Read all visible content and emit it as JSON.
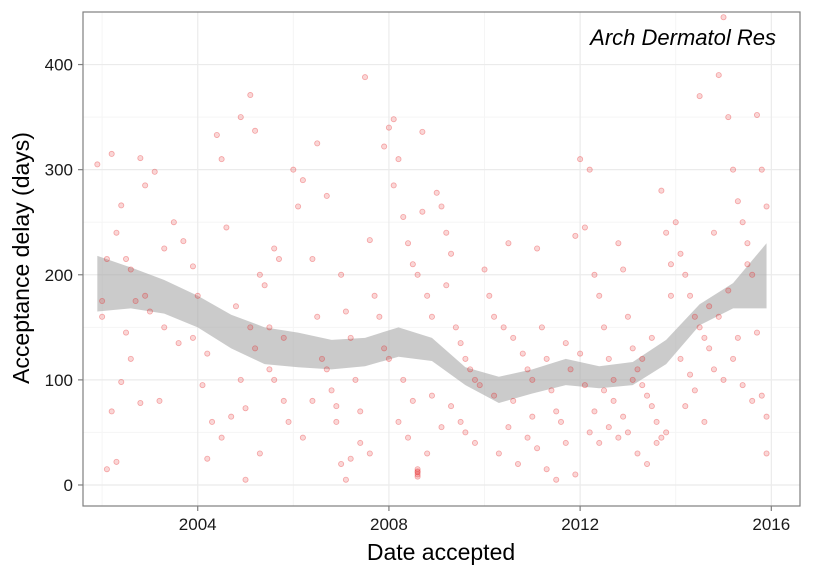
{
  "chart_data": {
    "type": "scatter",
    "annotation": "Arch Dermatol Res",
    "xlabel": "Date accepted",
    "ylabel": "Acceptance delay (days)",
    "xlim": [
      2001.6,
      2016.6
    ],
    "ylim": [
      -20,
      450
    ],
    "x_ticks": [
      2004,
      2008,
      2012,
      2016
    ],
    "y_ticks": [
      0,
      100,
      200,
      300,
      400
    ],
    "grid": true,
    "colors": {
      "points": "#e41a1c",
      "band": "#a8a8a8",
      "grid_major": "#ebebeb",
      "grid_minor": "#f5f5f5",
      "frame": "#7f7f7f",
      "text": "#1a1a1a"
    },
    "points": [
      [
        2001.9,
        305
      ],
      [
        2002.0,
        175
      ],
      [
        2002.1,
        215
      ],
      [
        2002.2,
        315
      ],
      [
        2002.3,
        240
      ],
      [
        2002.4,
        266
      ],
      [
        2002.5,
        215
      ],
      [
        2002.6,
        205
      ],
      [
        2002.8,
        311
      ],
      [
        2002.9,
        285
      ],
      [
        2003.1,
        298
      ],
      [
        2003.3,
        225
      ],
      [
        2003.5,
        250
      ],
      [
        2003.7,
        232
      ],
      [
        2003.9,
        208
      ],
      [
        2002.1,
        15
      ],
      [
        2002.2,
        70
      ],
      [
        2002.3,
        22
      ],
      [
        2002.4,
        98
      ],
      [
        2002.6,
        120
      ],
      [
        2002.8,
        78
      ],
      [
        2003.2,
        80
      ],
      [
        2002.9,
        180
      ],
      [
        2003.0,
        165
      ],
      [
        2003.3,
        150
      ],
      [
        2003.6,
        135
      ],
      [
        2003.9,
        140
      ],
      [
        2002.0,
        160
      ],
      [
        2002.5,
        145
      ],
      [
        2002.7,
        175
      ],
      [
        2004.0,
        180
      ],
      [
        2004.1,
        95
      ],
      [
        2004.2,
        125
      ],
      [
        2004.4,
        333
      ],
      [
        2004.5,
        310
      ],
      [
        2004.6,
        245
      ],
      [
        2004.8,
        170
      ],
      [
        2004.9,
        100
      ],
      [
        2005.0,
        73
      ],
      [
        2005.1,
        150
      ],
      [
        2005.2,
        130
      ],
      [
        2005.3,
        200
      ],
      [
        2005.4,
        190
      ],
      [
        2005.5,
        150
      ],
      [
        2005.6,
        225
      ],
      [
        2005.7,
        215
      ],
      [
        2005.8,
        140
      ],
      [
        2004.2,
        25
      ],
      [
        2004.5,
        45
      ],
      [
        2004.7,
        65
      ],
      [
        2004.9,
        350
      ],
      [
        2005.1,
        371
      ],
      [
        2005.2,
        337
      ],
      [
        2005.5,
        110
      ],
      [
        2005.6,
        100
      ],
      [
        2005.8,
        80
      ],
      [
        2005.9,
        60
      ],
      [
        2004.3,
        60
      ],
      [
        2005.0,
        5
      ],
      [
        2005.3,
        30
      ],
      [
        2006.0,
        300
      ],
      [
        2006.1,
        265
      ],
      [
        2006.2,
        290
      ],
      [
        2006.4,
        215
      ],
      [
        2006.5,
        160
      ],
      [
        2006.6,
        120
      ],
      [
        2006.7,
        110
      ],
      [
        2006.8,
        90
      ],
      [
        2006.9,
        75
      ],
      [
        2007.0,
        200
      ],
      [
        2007.1,
        165
      ],
      [
        2007.2,
        140
      ],
      [
        2007.3,
        100
      ],
      [
        2007.4,
        40
      ],
      [
        2007.5,
        388
      ],
      [
        2007.6,
        233
      ],
      [
        2007.7,
        180
      ],
      [
        2007.8,
        160
      ],
      [
        2007.9,
        130
      ],
      [
        2006.5,
        325
      ],
      [
        2006.7,
        275
      ],
      [
        2006.9,
        60
      ],
      [
        2007.0,
        20
      ],
      [
        2007.1,
        5
      ],
      [
        2007.2,
        25
      ],
      [
        2007.4,
        70
      ],
      [
        2007.6,
        30
      ],
      [
        2007.9,
        322
      ],
      [
        2006.2,
        45
      ],
      [
        2006.4,
        80
      ],
      [
        2008.0,
        340
      ],
      [
        2008.1,
        348
      ],
      [
        2008.2,
        310
      ],
      [
        2008.3,
        255
      ],
      [
        2008.4,
        230
      ],
      [
        2008.5,
        210
      ],
      [
        2008.6,
        200
      ],
      [
        2008.7,
        336
      ],
      [
        2008.8,
        180
      ],
      [
        2008.9,
        160
      ],
      [
        2009.0,
        278
      ],
      [
        2009.1,
        265
      ],
      [
        2009.2,
        240
      ],
      [
        2009.3,
        220
      ],
      [
        2009.4,
        150
      ],
      [
        2009.5,
        135
      ],
      [
        2009.6,
        120
      ],
      [
        2009.7,
        110
      ],
      [
        2009.8,
        100
      ],
      [
        2009.9,
        95
      ],
      [
        2008.6,
        15
      ],
      [
        2008.6,
        12
      ],
      [
        2008.6,
        10
      ],
      [
        2008.6,
        8
      ],
      [
        2008.6,
        13
      ],
      [
        2008.2,
        60
      ],
      [
        2008.4,
        45
      ],
      [
        2008.8,
        30
      ],
      [
        2009.1,
        55
      ],
      [
        2009.5,
        60
      ],
      [
        2008.0,
        120
      ],
      [
        2008.3,
        100
      ],
      [
        2008.5,
        80
      ],
      [
        2008.9,
        85
      ],
      [
        2009.3,
        75
      ],
      [
        2009.6,
        50
      ],
      [
        2009.8,
        40
      ],
      [
        2008.1,
        285
      ],
      [
        2008.7,
        260
      ],
      [
        2009.2,
        190
      ],
      [
        2010.0,
        205
      ],
      [
        2010.1,
        180
      ],
      [
        2010.2,
        160
      ],
      [
        2010.4,
        150
      ],
      [
        2010.5,
        230
      ],
      [
        2010.6,
        140
      ],
      [
        2010.8,
        125
      ],
      [
        2010.9,
        110
      ],
      [
        2011.0,
        100
      ],
      [
        2011.1,
        225
      ],
      [
        2011.2,
        150
      ],
      [
        2011.3,
        120
      ],
      [
        2011.4,
        90
      ],
      [
        2011.5,
        70
      ],
      [
        2011.6,
        60
      ],
      [
        2011.7,
        135
      ],
      [
        2011.8,
        110
      ],
      [
        2011.9,
        237
      ],
      [
        2010.3,
        30
      ],
      [
        2010.5,
        55
      ],
      [
        2010.7,
        20
      ],
      [
        2010.9,
        45
      ],
      [
        2011.1,
        35
      ],
      [
        2011.3,
        15
      ],
      [
        2011.5,
        5
      ],
      [
        2011.7,
        40
      ],
      [
        2011.9,
        10
      ],
      [
        2010.2,
        85
      ],
      [
        2010.6,
        80
      ],
      [
        2011.0,
        65
      ],
      [
        2012.0,
        310
      ],
      [
        2012.1,
        245
      ],
      [
        2012.2,
        300
      ],
      [
        2012.3,
        200
      ],
      [
        2012.4,
        180
      ],
      [
        2012.5,
        150
      ],
      [
        2012.6,
        120
      ],
      [
        2012.7,
        100
      ],
      [
        2012.8,
        230
      ],
      [
        2012.9,
        205
      ],
      [
        2013.0,
        160
      ],
      [
        2013.1,
        130
      ],
      [
        2013.2,
        110
      ],
      [
        2013.3,
        95
      ],
      [
        2013.4,
        85
      ],
      [
        2013.5,
        75
      ],
      [
        2013.6,
        60
      ],
      [
        2013.7,
        280
      ],
      [
        2013.8,
        240
      ],
      [
        2013.9,
        210
      ],
      [
        2012.2,
        50
      ],
      [
        2012.4,
        40
      ],
      [
        2012.6,
        55
      ],
      [
        2012.8,
        45
      ],
      [
        2013.0,
        50
      ],
      [
        2013.2,
        30
      ],
      [
        2013.4,
        20
      ],
      [
        2013.6,
        40
      ],
      [
        2013.8,
        50
      ],
      [
        2012.3,
        70
      ],
      [
        2012.5,
        90
      ],
      [
        2012.7,
        80
      ],
      [
        2012.9,
        65
      ],
      [
        2013.1,
        100
      ],
      [
        2013.3,
        120
      ],
      [
        2013.5,
        140
      ],
      [
        2013.9,
        180
      ],
      [
        2012.0,
        125
      ],
      [
        2012.1,
        95
      ],
      [
        2013.7,
        45
      ],
      [
        2014.0,
        250
      ],
      [
        2014.1,
        220
      ],
      [
        2014.2,
        200
      ],
      [
        2014.3,
        180
      ],
      [
        2014.4,
        160
      ],
      [
        2014.5,
        370
      ],
      [
        2014.6,
        140
      ],
      [
        2014.7,
        130
      ],
      [
        2014.8,
        240
      ],
      [
        2014.9,
        390
      ],
      [
        2015.0,
        445
      ],
      [
        2015.1,
        350
      ],
      [
        2015.2,
        300
      ],
      [
        2015.3,
        270
      ],
      [
        2015.4,
        250
      ],
      [
        2015.5,
        230
      ],
      [
        2015.6,
        200
      ],
      [
        2015.7,
        352
      ],
      [
        2015.8,
        300
      ],
      [
        2015.9,
        265
      ],
      [
        2014.2,
        75
      ],
      [
        2014.4,
        90
      ],
      [
        2014.6,
        60
      ],
      [
        2014.8,
        110
      ],
      [
        2015.0,
        100
      ],
      [
        2015.2,
        120
      ],
      [
        2015.4,
        95
      ],
      [
        2015.6,
        80
      ],
      [
        2015.8,
        85
      ],
      [
        2015.9,
        65
      ],
      [
        2014.1,
        120
      ],
      [
        2014.3,
        105
      ],
      [
        2014.5,
        150
      ],
      [
        2014.7,
        170
      ],
      [
        2014.9,
        160
      ],
      [
        2015.1,
        185
      ],
      [
        2015.3,
        140
      ],
      [
        2015.5,
        210
      ],
      [
        2015.7,
        145
      ],
      [
        2015.9,
        30
      ]
    ],
    "smooth": {
      "x": [
        2001.9,
        2002.6,
        2003.3,
        2004.0,
        2004.7,
        2005.4,
        2006.1,
        2006.8,
        2007.5,
        2008.2,
        2008.9,
        2009.6,
        2010.3,
        2011.0,
        2011.7,
        2012.4,
        2013.1,
        2013.8,
        2014.5,
        2015.2,
        2015.9
      ],
      "lower": [
        165,
        168,
        163,
        150,
        130,
        115,
        112,
        110,
        113,
        122,
        118,
        95,
        78,
        87,
        95,
        92,
        95,
        115,
        152,
        168,
        168
      ],
      "upper": [
        218,
        207,
        195,
        180,
        162,
        150,
        145,
        138,
        140,
        150,
        140,
        112,
        103,
        110,
        120,
        113,
        117,
        138,
        172,
        192,
        230
      ]
    }
  }
}
